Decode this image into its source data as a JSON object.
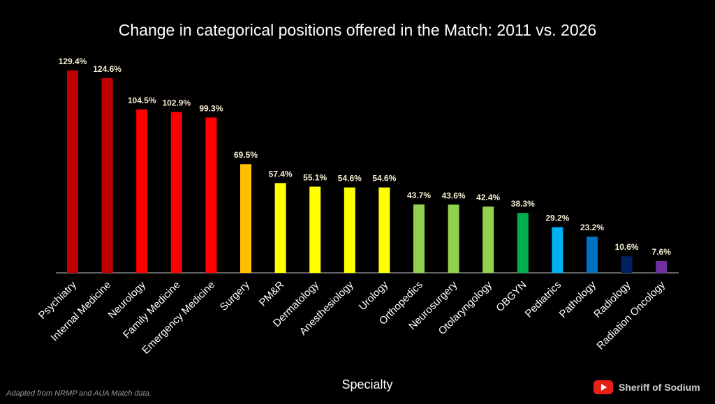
{
  "chart_data": {
    "type": "bar",
    "title": "Change in categorical positions offered in the Match: 2011 vs. 2026",
    "xlabel": "Specialty",
    "ylabel": "",
    "ylim": [
      0,
      129.4
    ],
    "grid": false,
    "categories": [
      "Psychiatry",
      "Internal Medicine",
      "Neurology",
      "Family Medicine",
      "Emergency Medicine",
      "Surgery",
      "PM&R",
      "Dermatology",
      "Anesthesiology",
      "Urology",
      "Orthopedics",
      "Neurosurgery",
      "Otolaryngology",
      "OBGYN",
      "Pediatrics",
      "Pathology",
      "Radiology",
      "Radiation Oncology"
    ],
    "values": [
      129.4,
      124.6,
      104.5,
      102.9,
      99.3,
      69.5,
      57.4,
      55.1,
      54.6,
      54.6,
      43.7,
      43.6,
      42.4,
      38.3,
      29.2,
      23.2,
      10.6,
      7.6
    ],
    "data_labels": [
      "129.4%",
      "124.6%",
      "104.5%",
      "102.9%",
      "99.3%",
      "69.5%",
      "57.4%",
      "55.1%",
      "54.6%",
      "54.6%",
      "43.7%",
      "43.6%",
      "42.4%",
      "38.3%",
      "29.2%",
      "23.2%",
      "10.6%",
      "7.6%"
    ],
    "colors": [
      "#c00000",
      "#c00000",
      "#ff0000",
      "#ff0000",
      "#ff0000",
      "#ffc000",
      "#ffff00",
      "#ffff00",
      "#ffff00",
      "#ffff00",
      "#92d050",
      "#92d050",
      "#92d050",
      "#00b050",
      "#00b0f0",
      "#0070c0",
      "#002060",
      "#7030a0"
    ]
  },
  "footnote": "Adapted from NRMP and AUA Match data.",
  "brand": {
    "icon": "youtube-icon",
    "label": "Sheriff of Sodium"
  }
}
